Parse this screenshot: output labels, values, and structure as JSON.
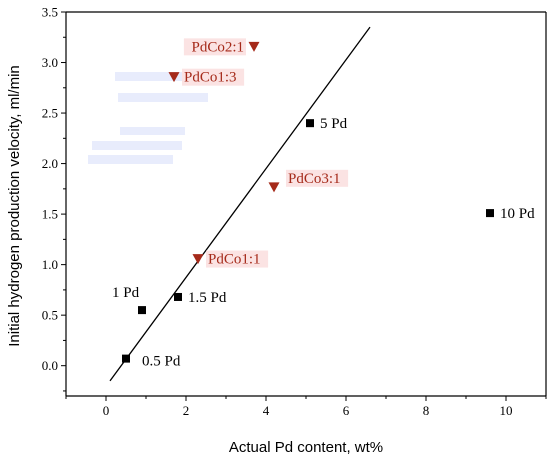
{
  "chart_data": {
    "type": "scatter",
    "xlabel": "Actual Pd content, wt%",
    "ylabel": "Initial hydrogen production velocity, ml/min",
    "xlim": [
      -1,
      11
    ],
    "ylim": [
      -0.3,
      3.5
    ],
    "xticks": [
      0,
      2,
      4,
      6,
      8,
      10
    ],
    "yticks": [
      0.0,
      0.5,
      1.0,
      1.5,
      2.0,
      2.5,
      3.0,
      3.5
    ],
    "grid": false,
    "series": [
      {
        "marker": "square",
        "color": "#000000",
        "points": [
          {
            "x": 0.5,
            "y": 0.07,
            "label": "0.5 Pd"
          },
          {
            "x": 0.9,
            "y": 0.55,
            "label": "1 Pd"
          },
          {
            "x": 1.8,
            "y": 0.68,
            "label": "1.5 Pd"
          },
          {
            "x": 5.1,
            "y": 2.4,
            "label": "5 Pd"
          },
          {
            "x": 9.6,
            "y": 1.51,
            "label": "10 Pd"
          }
        ]
      },
      {
        "marker": "triangle-down",
        "color": "#a52a1a",
        "points": [
          {
            "x": 2.3,
            "y": 1.06,
            "label": "PdCo1:1"
          },
          {
            "x": 4.2,
            "y": 1.77,
            "label": "PdCo3:1"
          },
          {
            "x": 1.7,
            "y": 2.86,
            "label": "PdCo1:3"
          },
          {
            "x": 3.7,
            "y": 3.16,
            "label": "PdCo2:1"
          }
        ]
      }
    ],
    "fit_line": {
      "x1": 0.1,
      "y1": -0.15,
      "x2": 6.6,
      "y2": 3.35,
      "color": "#000000"
    },
    "label_offsets": {
      "0.5 Pd": "right-below",
      "1 Pd": "above-left",
      "1.5 Pd": "right",
      "5 Pd": "right",
      "10 Pd": "right",
      "PdCo1:1": "right",
      "PdCo3:1": "right-above",
      "PdCo1:3": "right",
      "PdCo2:1": "left"
    }
  }
}
